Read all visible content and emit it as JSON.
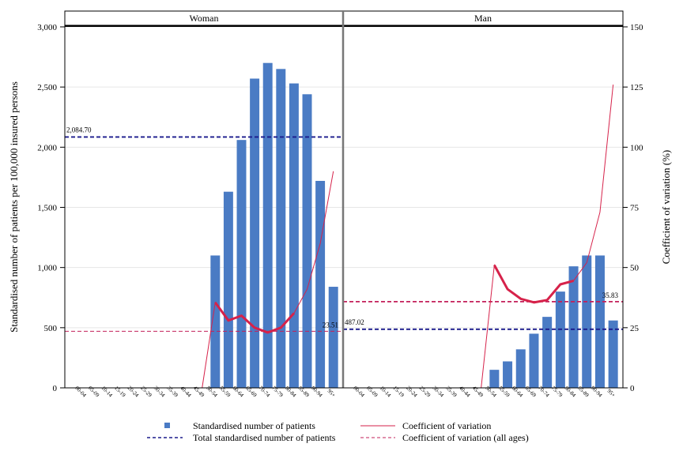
{
  "chart_data": {
    "type": "bar",
    "panels": [
      "Woman",
      "Man"
    ],
    "categories": [
      "00-04",
      "05-09",
      "10-14",
      "15-19",
      "20-24",
      "25-29",
      "30-34",
      "35-39",
      "40-44",
      "45-49",
      "50-54",
      "55-59",
      "60-64",
      "65-69",
      "70-74",
      "75-79",
      "80-84",
      "85-89",
      "90-94",
      "95+"
    ],
    "ylabel_left": "Standardised number of patients per 100,000 insured persons",
    "ylabel_right": "Coefficient of variation (%)",
    "ylim_left": [
      0,
      3000
    ],
    "ylim_right": [
      0,
      150
    ],
    "yticks_left": [
      "0",
      "500",
      "1,000",
      "1,500",
      "2,000",
      "2,500",
      "3,000"
    ],
    "yticks_right": [
      "0",
      "25",
      "50",
      "75",
      "100",
      "125",
      "150"
    ],
    "grid": true,
    "legend_position": "bottom",
    "legend": {
      "bars": "Standardised number of patients",
      "cv": "Coefficient of variation",
      "total": "Total standardised number of patients",
      "cv_all": "Coefficient of variation (all ages)"
    },
    "series": [
      {
        "panel": "Woman",
        "patients": [
          0,
          0,
          0,
          0,
          0,
          0,
          0,
          0,
          0,
          0,
          1100,
          1630,
          2060,
          2570,
          2700,
          2650,
          2530,
          2440,
          1720,
          840
        ],
        "cv": [
          0,
          0,
          0,
          0,
          0,
          0,
          0,
          0,
          0,
          0,
          35.5,
          28,
          30,
          25,
          23,
          25,
          31,
          41,
          60,
          90
        ],
        "total": 2084.7,
        "total_label": "2,084.70",
        "cv_all": 23.51,
        "cv_all_label": "23.51"
      },
      {
        "panel": "Man",
        "patients": [
          0,
          0,
          0,
          0,
          0,
          0,
          0,
          0,
          0,
          0,
          150,
          220,
          320,
          450,
          590,
          800,
          1010,
          1100,
          1100,
          560
        ],
        "cv": [
          0,
          0,
          0,
          0,
          0,
          0,
          0,
          0,
          0,
          0,
          51,
          41,
          37,
          35.5,
          36.5,
          43,
          44.5,
          52,
          73,
          126
        ],
        "total": 487.02,
        "total_label": "487.02",
        "cv_all": 35.83,
        "cv_all_label": "35.83"
      }
    ],
    "colors": {
      "bar": "#4a7bc4",
      "cv": "#d6224a",
      "total": "#1a1a8c",
      "cv_all": "#c3205a"
    }
  }
}
